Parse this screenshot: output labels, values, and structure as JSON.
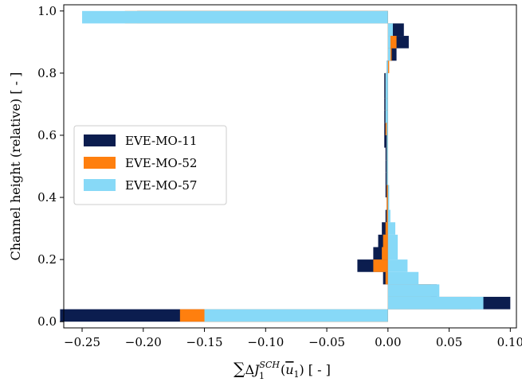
{
  "chart_data": {
    "type": "bar",
    "orientation": "horizontal",
    "stacking": "overlaid",
    "xlabel": "∑ΔJ₁^SCH(ū₁) [ - ]",
    "xlabel_parts": {
      "sum": "∑",
      "delta": "Δ",
      "J": "J",
      "sub": "1",
      "sup": "SCH",
      "paren_open": "(",
      "u": "u",
      "u_sub": "1",
      "paren_close": ")",
      "unit": "[ - ]"
    },
    "ylabel": "Channel height (relative) [ - ]",
    "xlim": [
      -0.265,
      0.105
    ],
    "ylim": [
      -0.02,
      1.02
    ],
    "xticks": [
      "−0.25",
      "−0.20",
      "−0.15",
      "−0.10",
      "−0.05",
      "0.00",
      "0.05",
      "0.10"
    ],
    "xtick_values": [
      -0.25,
      -0.2,
      -0.15,
      -0.1,
      -0.05,
      0.0,
      0.05,
      0.1
    ],
    "yticks": [
      "0.0",
      "0.2",
      "0.4",
      "0.6",
      "0.8",
      "1.0"
    ],
    "ytick_values": [
      0.0,
      0.2,
      0.4,
      0.6,
      0.8,
      1.0
    ],
    "legend_position": "center-left",
    "bar_height": 0.04,
    "series": [
      {
        "name": "EVE-MO-11",
        "color": "#0b1d4f",
        "points": [
          {
            "y": 0.02,
            "x": -0.268
          },
          {
            "y": 0.06,
            "x": 0.1
          },
          {
            "y": 0.1,
            "x": 0.04
          },
          {
            "y": 0.14,
            "x": -0.004
          },
          {
            "y": 0.18,
            "x": -0.025
          },
          {
            "y": 0.22,
            "x": -0.012
          },
          {
            "y": 0.26,
            "x": -0.008
          },
          {
            "y": 0.3,
            "x": -0.005
          },
          {
            "y": 0.34,
            "x": -0.002
          },
          {
            "y": 0.38,
            "x": -0.001
          },
          {
            "y": 0.42,
            "x": -0.002
          },
          {
            "y": 0.46,
            "x": -0.002
          },
          {
            "y": 0.5,
            "x": -0.002
          },
          {
            "y": 0.54,
            "x": -0.002
          },
          {
            "y": 0.58,
            "x": -0.003
          },
          {
            "y": 0.62,
            "x": -0.003
          },
          {
            "y": 0.66,
            "x": -0.003
          },
          {
            "y": 0.7,
            "x": -0.003
          },
          {
            "y": 0.74,
            "x": -0.003
          },
          {
            "y": 0.78,
            "x": -0.003
          },
          {
            "y": 0.82,
            "x": -0.001
          },
          {
            "y": 0.86,
            "x": 0.007
          },
          {
            "y": 0.9,
            "x": 0.017
          },
          {
            "y": 0.94,
            "x": 0.013
          },
          {
            "y": 0.98,
            "x": -0.205
          }
        ]
      },
      {
        "name": "EVE-MO-52",
        "color": "#ff7f0e",
        "points": [
          {
            "y": 0.02,
            "x": -0.17
          },
          {
            "y": 0.06,
            "x": 0.068
          },
          {
            "y": 0.1,
            "x": 0.035
          },
          {
            "y": 0.14,
            "x": -0.002
          },
          {
            "y": 0.18,
            "x": -0.012
          },
          {
            "y": 0.22,
            "x": -0.005
          },
          {
            "y": 0.26,
            "x": -0.004
          },
          {
            "y": 0.3,
            "x": -0.002
          },
          {
            "y": 0.34,
            "x": -0.001
          },
          {
            "y": 0.38,
            "x": -0.001
          },
          {
            "y": 0.42,
            "x": -0.001
          },
          {
            "y": 0.46,
            "x": -0.001
          },
          {
            "y": 0.5,
            "x": -0.001
          },
          {
            "y": 0.54,
            "x": -0.001
          },
          {
            "y": 0.58,
            "x": -0.001
          },
          {
            "y": 0.62,
            "x": -0.002
          },
          {
            "y": 0.66,
            "x": -0.002
          },
          {
            "y": 0.7,
            "x": -0.002
          },
          {
            "y": 0.74,
            "x": -0.002
          },
          {
            "y": 0.78,
            "x": -0.002
          },
          {
            "y": 0.82,
            "x": 0.001
          },
          {
            "y": 0.86,
            "x": 0.003
          },
          {
            "y": 0.9,
            "x": 0.007
          },
          {
            "y": 0.94,
            "x": 0.003
          },
          {
            "y": 0.98,
            "x": -0.215
          }
        ]
      },
      {
        "name": "EVE-MO-57",
        "color": "#87d9f7",
        "points": [
          {
            "y": 0.02,
            "x": -0.15
          },
          {
            "y": 0.06,
            "x": 0.078
          },
          {
            "y": 0.1,
            "x": 0.042
          },
          {
            "y": 0.14,
            "x": 0.025
          },
          {
            "y": 0.18,
            "x": 0.016
          },
          {
            "y": 0.22,
            "x": 0.008
          },
          {
            "y": 0.26,
            "x": 0.008
          },
          {
            "y": 0.3,
            "x": 0.006
          },
          {
            "y": 0.34,
            "x": 0.002
          },
          {
            "y": 0.38,
            "x": 0.001
          },
          {
            "y": 0.42,
            "x": 0.001
          },
          {
            "y": 0.46,
            "x": -0.001
          },
          {
            "y": 0.5,
            "x": -0.001
          },
          {
            "y": 0.54,
            "x": -0.001
          },
          {
            "y": 0.58,
            "x": -0.001
          },
          {
            "y": 0.62,
            "x": -0.001
          },
          {
            "y": 0.66,
            "x": -0.002
          },
          {
            "y": 0.7,
            "x": -0.002
          },
          {
            "y": 0.74,
            "x": -0.002
          },
          {
            "y": 0.78,
            "x": -0.002
          },
          {
            "y": 0.82,
            "x": -0.001
          },
          {
            "y": 0.86,
            "x": 0.002
          },
          {
            "y": 0.9,
            "x": 0.002
          },
          {
            "y": 0.94,
            "x": 0.004
          },
          {
            "y": 0.98,
            "x": -0.25
          }
        ]
      }
    ]
  }
}
